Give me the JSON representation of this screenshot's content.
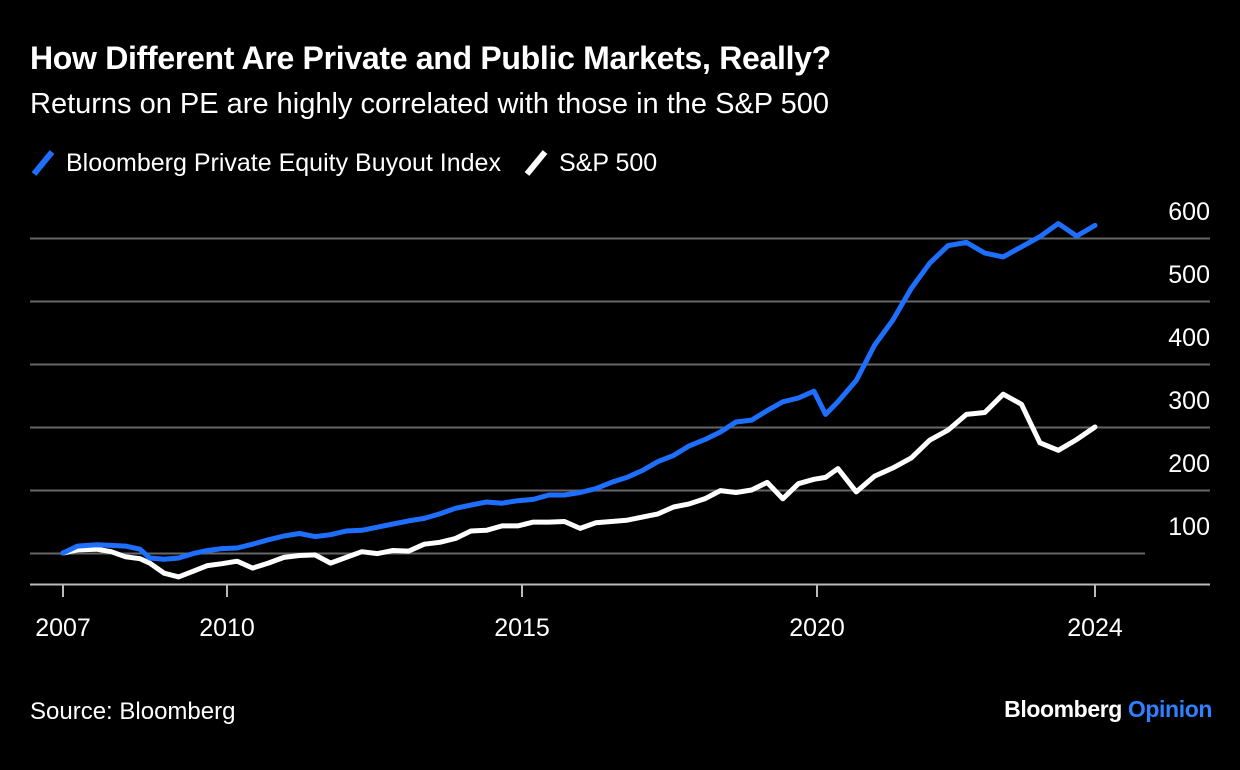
{
  "title": "How Different Are Private and Public Markets, Really?",
  "subtitle": "Returns on PE are highly correlated with those in the S&P 500",
  "source": "Source: Bloomberg",
  "brand": {
    "primary": "Bloomberg",
    "secondary": "Opinion"
  },
  "colors": {
    "background": "#000000",
    "pe": "#1f6fff",
    "sp": "#ffffff",
    "grid": "#666666",
    "brand_accent": "#2f80ff"
  },
  "chart_data": {
    "type": "line",
    "xlabel": "",
    "ylabel": "",
    "xlim": [
      2006.6,
      2025.3
    ],
    "ylim": [
      -50,
      650
    ],
    "y_gridlines": [
      100,
      200,
      300,
      400,
      500,
      600
    ],
    "y_ticks": [
      {
        "value": 100,
        "label": "100"
      },
      {
        "value": 200,
        "label": "200"
      },
      {
        "value": 300,
        "label": "300"
      },
      {
        "value": 400,
        "label": "400"
      },
      {
        "value": 500,
        "label": "500"
      },
      {
        "value": 600,
        "label": "600"
      }
    ],
    "x_ticks": [
      {
        "value": 2007,
        "label": "2007"
      },
      {
        "value": 2010,
        "label": "2010"
      },
      {
        "value": 2015,
        "label": "2015"
      },
      {
        "value": 2020,
        "label": "2020"
      },
      {
        "value": 2024,
        "label": "2024"
      }
    ],
    "legend_position": "top-left",
    "series": [
      {
        "name": "Bloomberg Private Equity Buyout Index",
        "color": "#1f6fff",
        "points": [
          [
            2007.0,
            100
          ],
          [
            2007.3,
            111
          ],
          [
            2007.7,
            113
          ],
          [
            2008.0,
            112
          ],
          [
            2008.3,
            111
          ],
          [
            2008.6,
            106
          ],
          [
            2008.8,
            92
          ],
          [
            2009.1,
            90
          ],
          [
            2009.4,
            92
          ],
          [
            2009.7,
            99
          ],
          [
            2010.0,
            104
          ],
          [
            2010.3,
            107
          ],
          [
            2010.6,
            108
          ],
          [
            2010.9,
            114
          ],
          [
            2011.2,
            121
          ],
          [
            2011.5,
            127
          ],
          [
            2011.8,
            131
          ],
          [
            2012.1,
            126
          ],
          [
            2012.4,
            129
          ],
          [
            2012.7,
            135
          ],
          [
            2013.0,
            136
          ],
          [
            2013.3,
            141
          ],
          [
            2013.6,
            146
          ],
          [
            2013.9,
            151
          ],
          [
            2014.2,
            155
          ],
          [
            2014.5,
            162
          ],
          [
            2014.8,
            171
          ],
          [
            2015.1,
            176
          ],
          [
            2015.4,
            181
          ],
          [
            2015.7,
            179
          ],
          [
            2016.0,
            183
          ],
          [
            2016.3,
            185
          ],
          [
            2016.6,
            192
          ],
          [
            2016.9,
            192
          ],
          [
            2017.2,
            196
          ],
          [
            2017.5,
            202
          ],
          [
            2017.8,
            212
          ],
          [
            2018.1,
            220
          ],
          [
            2018.4,
            231
          ],
          [
            2018.7,
            245
          ],
          [
            2019.0,
            255
          ],
          [
            2019.3,
            270
          ],
          [
            2019.6,
            280
          ],
          [
            2019.9,
            292
          ],
          [
            2020.2,
            308
          ],
          [
            2020.5,
            311
          ],
          [
            2020.8,
            326
          ],
          [
            2021.1,
            340
          ],
          [
            2021.4,
            346
          ],
          [
            2021.7,
            357
          ],
          [
            2021.9,
            320
          ],
          [
            2022.1,
            340
          ],
          [
            2022.4,
            374
          ],
          [
            2022.7,
            430
          ],
          [
            2023.0,
            470
          ],
          [
            2023.3,
            520
          ],
          [
            2023.6,
            560
          ],
          [
            2023.9,
            588
          ],
          [
            2024.2,
            593
          ],
          [
            2024.5,
            576
          ],
          [
            2024.8,
            570
          ],
          [
            2025.1,
            586
          ],
          [
            2025.4,
            602
          ],
          [
            2025.7,
            623
          ],
          [
            2026.0,
            603
          ],
          [
            2026.3,
            620
          ]
        ]
      },
      {
        "name": "S&P 500",
        "color": "#ffffff",
        "points": [
          [
            2007.0,
            100
          ],
          [
            2007.3,
            105
          ],
          [
            2007.7,
            106
          ],
          [
            2008.0,
            102
          ],
          [
            2008.3,
            94
          ],
          [
            2008.6,
            91
          ],
          [
            2008.8,
            84
          ],
          [
            2009.1,
            68
          ],
          [
            2009.4,
            62
          ],
          [
            2009.7,
            71
          ],
          [
            2010.0,
            80
          ],
          [
            2010.3,
            83
          ],
          [
            2010.6,
            87
          ],
          [
            2010.9,
            76
          ],
          [
            2011.2,
            84
          ],
          [
            2011.5,
            93
          ],
          [
            2011.8,
            96
          ],
          [
            2012.1,
            97
          ],
          [
            2012.4,
            84
          ],
          [
            2012.7,
            93
          ],
          [
            2013.0,
            102
          ],
          [
            2013.3,
            99
          ],
          [
            2013.6,
            104
          ],
          [
            2013.9,
            103
          ],
          [
            2014.2,
            114
          ],
          [
            2014.5,
            117
          ],
          [
            2014.8,
            123
          ],
          [
            2015.1,
            135
          ],
          [
            2015.4,
            136
          ],
          [
            2015.7,
            143
          ],
          [
            2016.0,
            143
          ],
          [
            2016.3,
            149
          ],
          [
            2016.6,
            149
          ],
          [
            2016.9,
            150
          ],
          [
            2017.2,
            139
          ],
          [
            2017.5,
            148
          ],
          [
            2017.8,
            150
          ],
          [
            2018.1,
            152
          ],
          [
            2018.4,
            157
          ],
          [
            2018.7,
            162
          ],
          [
            2019.0,
            173
          ],
          [
            2019.3,
            178
          ],
          [
            2019.6,
            186
          ],
          [
            2019.9,
            199
          ],
          [
            2020.2,
            196
          ],
          [
            2020.5,
            200
          ],
          [
            2020.8,
            212
          ],
          [
            2021.1,
            186
          ],
          [
            2021.4,
            210
          ],
          [
            2021.7,
            217
          ],
          [
            2021.9,
            220
          ],
          [
            2022.1,
            234
          ],
          [
            2022.4,
            197
          ],
          [
            2022.7,
            222
          ],
          [
            2023.0,
            235
          ],
          [
            2023.3,
            251
          ],
          [
            2023.6,
            279
          ],
          [
            2023.9,
            295
          ],
          [
            2024.2,
            320
          ],
          [
            2024.5,
            323
          ],
          [
            2024.8,
            352
          ],
          [
            2025.1,
            336
          ],
          [
            2025.4,
            275
          ],
          [
            2025.7,
            263
          ],
          [
            2026.0,
            280
          ],
          [
            2026.3,
            300
          ]
        ]
      }
    ]
  }
}
